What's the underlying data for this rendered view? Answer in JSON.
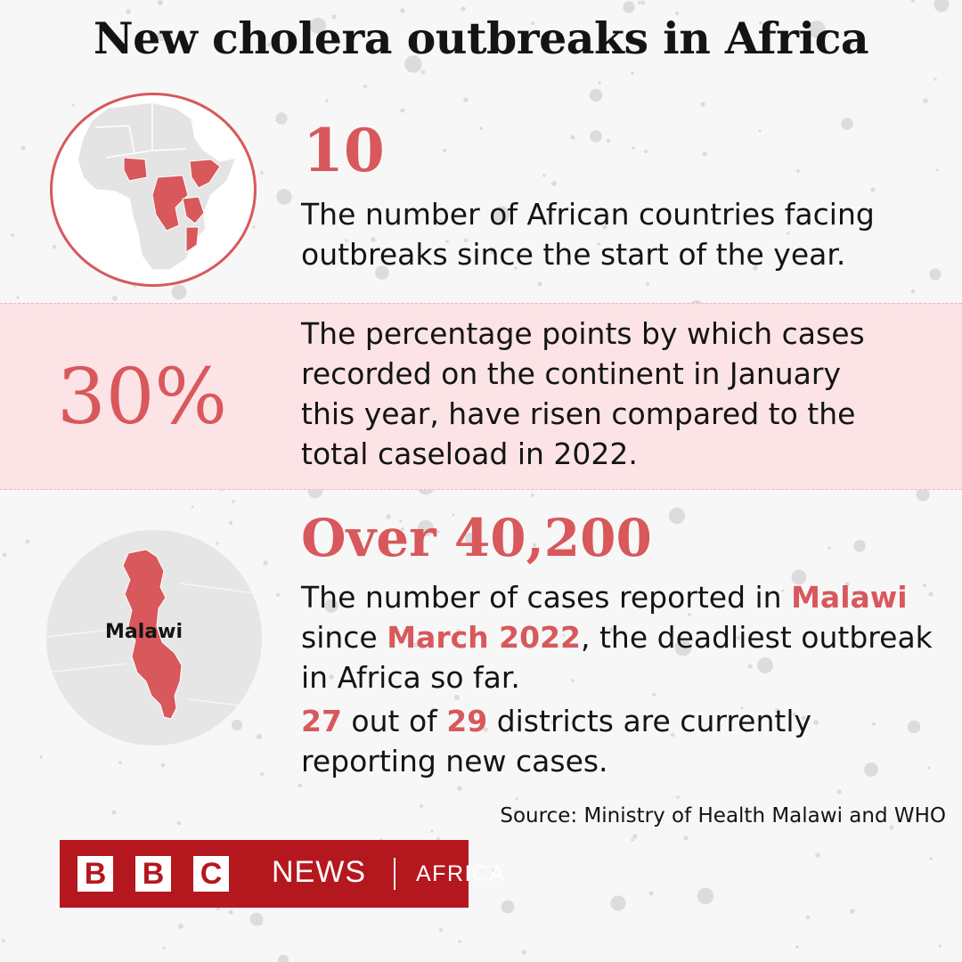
{
  "title": "New cholera outbreaks in Africa",
  "stat1": {
    "value": "10",
    "description_line1": "The number of African countries facing",
    "description_line2": "outbreaks since the start of the year.",
    "map_icon": "africa-map-icon",
    "highlight_color": "#d8585b"
  },
  "stat2": {
    "value": "30%",
    "description_line1": "The percentage points by which cases",
    "description_line2": "recorded on the continent in January",
    "description_line3": "this year, have risen compared to the",
    "description_line4": "total caseload in 2022.",
    "band_color": "#fbe3e6"
  },
  "stat3": {
    "value": "Over 40,200",
    "map_icon": "malawi-map-icon",
    "map_label": "Malawi",
    "line1_pre": "The number of cases reported in ",
    "line1_hl": "Malawi",
    "line2_hl": "March 2022",
    "line2_post": ", the deadliest outbreak",
    "line2_pre": "since ",
    "line3": "in Africa so far.",
    "districts_affected": "27",
    "districts_mid": " out of ",
    "districts_total": "29",
    "districts_post": " districts are currently",
    "line5": "reporting new cases."
  },
  "source": "Source: Ministry of Health Malawi and WHO",
  "logo": {
    "b1": "B",
    "b2": "B",
    "c": "C",
    "news": "NEWS",
    "section": "AFRICA",
    "color": "#b5171e"
  }
}
